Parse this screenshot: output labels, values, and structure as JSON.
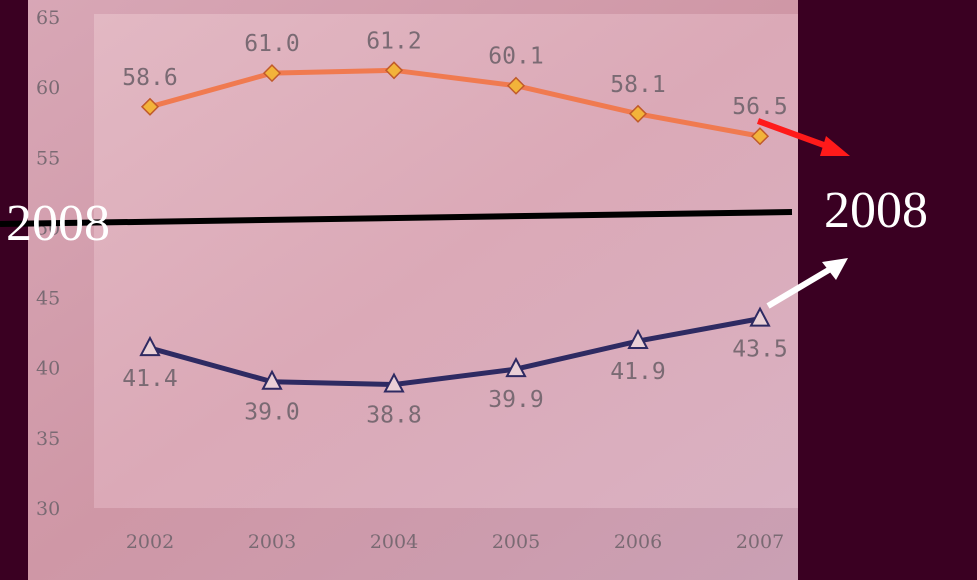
{
  "chart_data": {
    "type": "line",
    "categories": [
      "2002",
      "2003",
      "2004",
      "2005",
      "2006",
      "2007"
    ],
    "series": [
      {
        "values": [
          58.6,
          61.0,
          61.2,
          60.1,
          58.1,
          56.5
        ],
        "labels": [
          "58.6",
          "61.0",
          "61.2",
          "60.1",
          "58.1",
          "56.5"
        ],
        "color": "#f07a50",
        "marker": "diamond"
      },
      {
        "values": [
          41.4,
          39.0,
          38.8,
          39.9,
          41.9,
          43.5
        ],
        "labels": [
          "41.4",
          "39.0",
          "38.8",
          "39.9",
          "41.9",
          "43.5"
        ],
        "color": "#2e2a62",
        "marker": "triangle"
      }
    ],
    "y_ticks": [
      "30",
      "35",
      "40",
      "45",
      "50",
      "55",
      "60",
      "65"
    ],
    "ylim": [
      30,
      65
    ],
    "grid": false
  },
  "annotations": {
    "left_label": "2008",
    "right_label": "2008",
    "divider_color": "#000000",
    "upper_arrow_color": "#ff1a1a",
    "lower_arrow_color": "#ffffff"
  }
}
